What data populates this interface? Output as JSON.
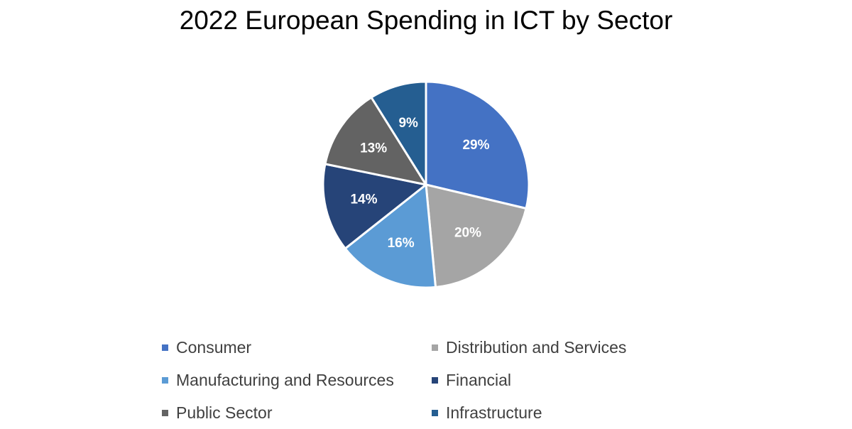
{
  "chart_data": {
    "type": "pie",
    "title": "2022 European Spending in ICT by Sector",
    "slices": [
      {
        "label": "Consumer",
        "value": 29,
        "display": "29%",
        "color": "#4472C4"
      },
      {
        "label": "Distribution and Services",
        "value": 20,
        "display": "20%",
        "color": "#A5A5A5"
      },
      {
        "label": "Manufacturing and Resources",
        "value": 16,
        "display": "16%",
        "color": "#5B9BD5"
      },
      {
        "label": "Financial",
        "value": 14,
        "display": "14%",
        "color": "#264478"
      },
      {
        "label": "Public Sector",
        "value": 13,
        "display": "13%",
        "color": "#636363"
      },
      {
        "label": "Infrastructure",
        "value": 9,
        "display": "9%",
        "color": "#255E91"
      }
    ],
    "legend": {
      "placement": "bottom",
      "order": [
        "Consumer",
        "Distribution and Services",
        "Manufacturing and Resources",
        "Financial",
        "Public Sector",
        "Infrastructure"
      ]
    }
  }
}
